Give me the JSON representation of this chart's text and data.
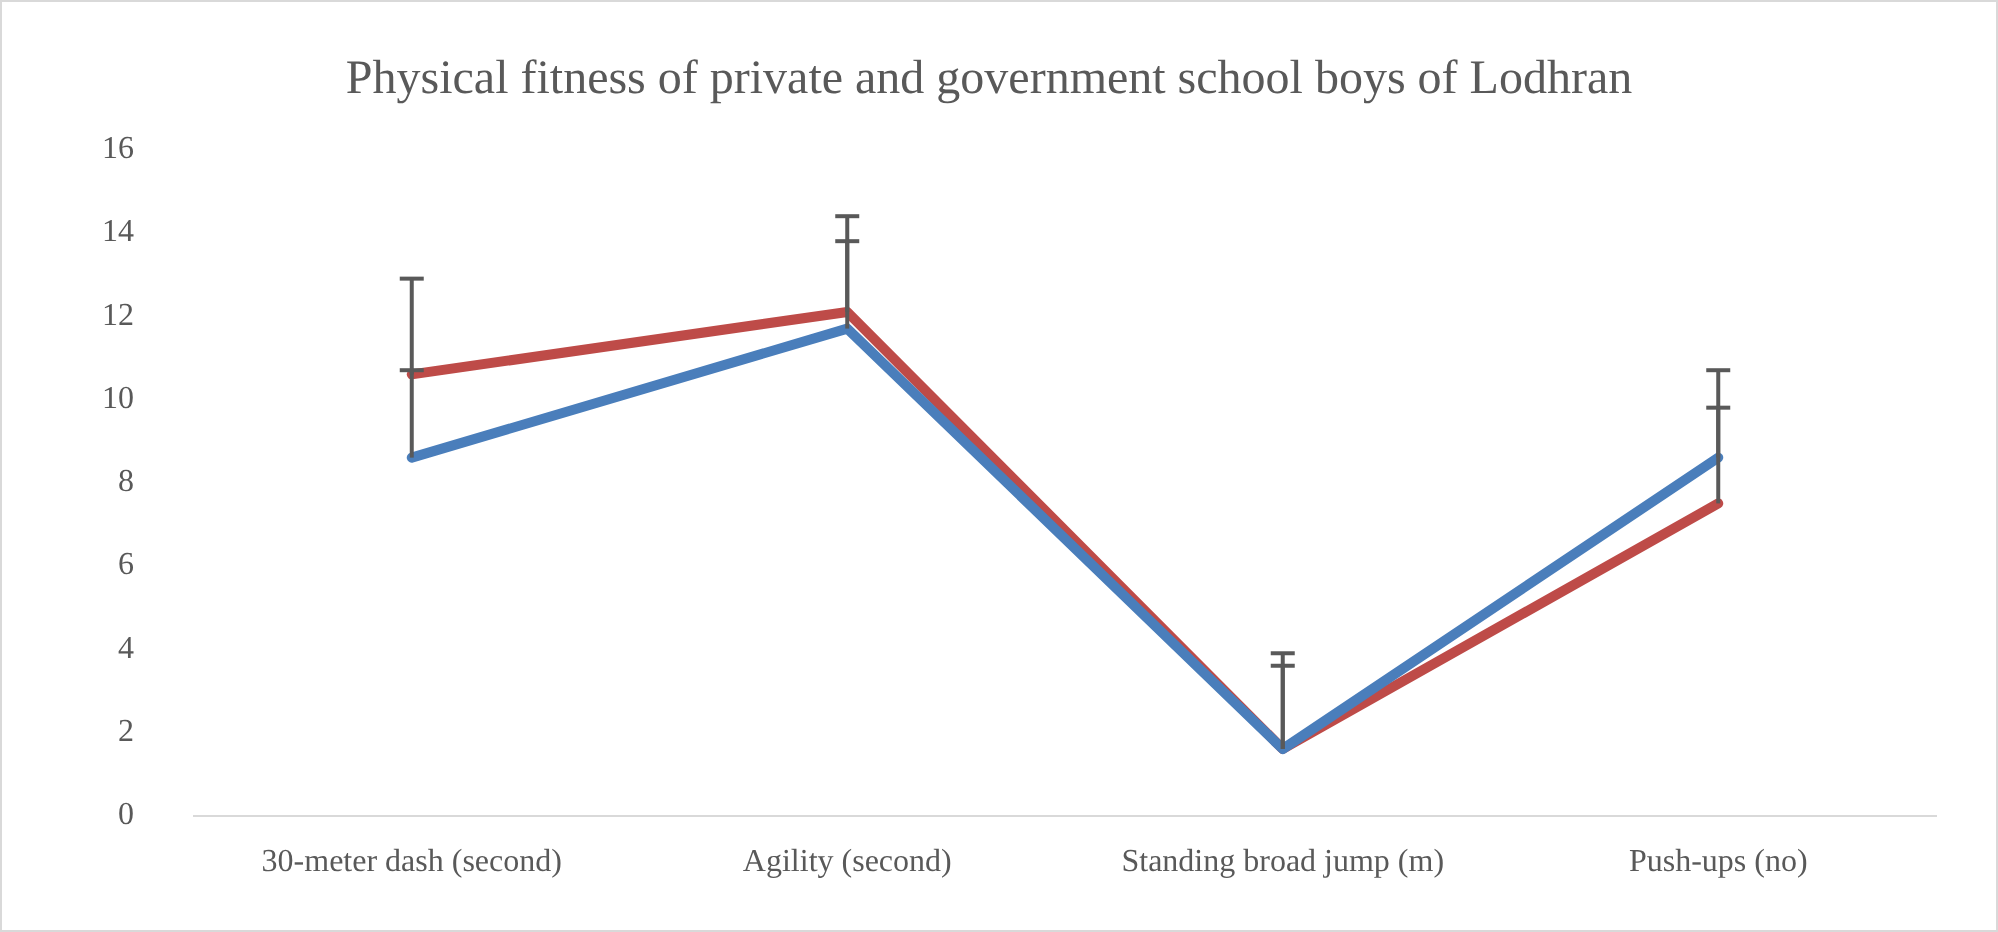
{
  "chart_data": {
    "type": "line",
    "title": "Physical fitness of private and government school boys of Lodhran",
    "categories": [
      "30-meter dash (second)",
      "Agility (second)",
      "Standing broad jump (m)",
      "Push-ups (no)"
    ],
    "series": [
      {
        "color": "#4a7ebb",
        "values": [
          8.6,
          11.7,
          1.6,
          8.6
        ],
        "errors": [
          [
            8.6,
            10.7
          ],
          [
            11.7,
            13.8
          ],
          [
            1.6,
            3.6
          ],
          [
            8.6,
            10.7
          ]
        ]
      },
      {
        "color": "#be4b48",
        "values": [
          10.6,
          12.1,
          1.6,
          7.5
        ],
        "errors": [
          [
            10.6,
            12.9
          ],
          [
            12.1,
            14.4
          ],
          [
            1.6,
            3.9
          ],
          [
            7.5,
            9.8
          ]
        ]
      }
    ],
    "ylim": [
      0,
      16
    ],
    "yticks": [
      0,
      2,
      4,
      6,
      8,
      10,
      12,
      14,
      16
    ],
    "grid": false,
    "legend": false,
    "marker": "none",
    "line_style": "solid"
  }
}
